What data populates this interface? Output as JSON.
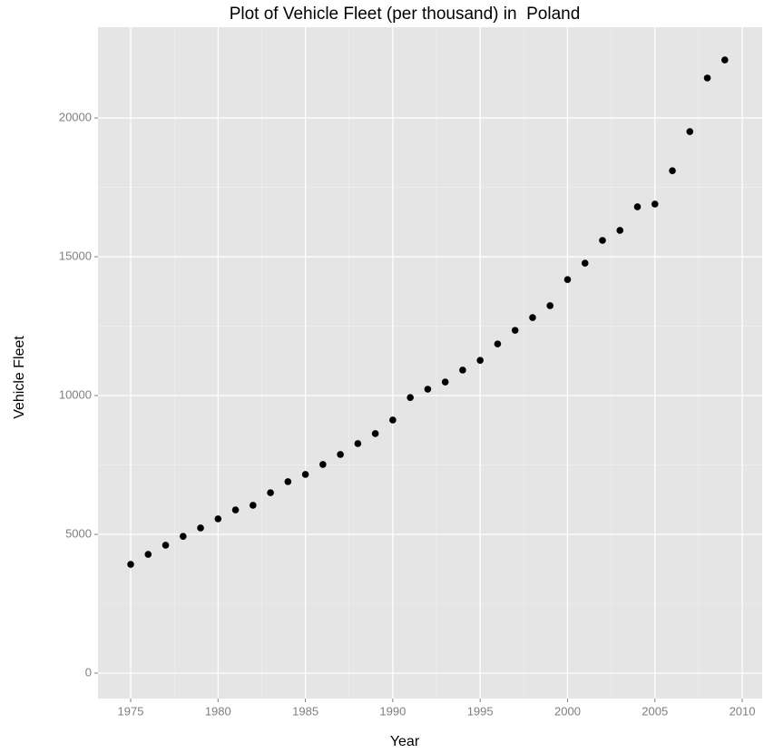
{
  "chart_data": {
    "type": "scatter",
    "title": "Plot of Vehicle Fleet (per thousand) in  Poland",
    "x_label": "Year",
    "y_label": "Vehicle Fleet",
    "color": "#000000",
    "grid": true,
    "x": [
      1975,
      1976,
      1977,
      1978,
      1979,
      1980,
      1981,
      1982,
      1983,
      1984,
      1985,
      1986,
      1987,
      1988,
      1989,
      1990,
      1991,
      1992,
      1993,
      1994,
      1995,
      1996,
      1997,
      1998,
      1999,
      2000,
      2001,
      2002,
      2003,
      2004,
      2005,
      2006,
      2007,
      2008,
      2009
    ],
    "values": [
      3920,
      4280,
      4610,
      4930,
      5230,
      5560,
      5880,
      6050,
      6500,
      6900,
      7160,
      7520,
      7880,
      8270,
      8630,
      9120,
      9930,
      10230,
      10490,
      10920,
      11270,
      11860,
      12350,
      12810,
      13240,
      14180,
      14770,
      15590,
      15950,
      16800,
      16900,
      18100,
      19510,
      21440,
      22090
    ],
    "xlim": [
      1973.13,
      2011.14
    ],
    "xticks": [
      1975,
      1980,
      1985,
      1990,
      1995,
      2000,
      2005,
      2010
    ],
    "ylim": [
      -915,
      23270
    ],
    "yticks": [
      0,
      5000,
      10000,
      15000,
      20000
    ]
  }
}
